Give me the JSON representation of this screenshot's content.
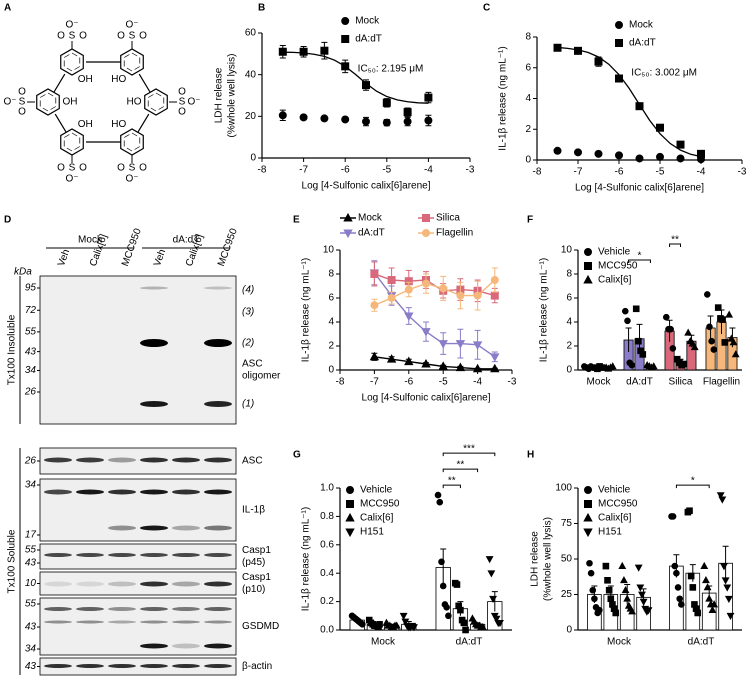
{
  "panel_a": {
    "label": "A",
    "sulfur": "S",
    "oxygen": "O",
    "anion": "O⁻",
    "hydroxyl": "OH",
    "hydroxyl_reversed": "HO"
  },
  "panel_d": {
    "label": "D",
    "kda": "kDa",
    "groups": [
      "Mock",
      "dA:dT"
    ],
    "lanes": [
      "Veh",
      "Calix[6]",
      "MCC950",
      "Veh",
      "Calix[6]",
      "MCC950"
    ],
    "fractions": [
      "Tx100 Insoluble",
      "Tx100 Soluble"
    ],
    "oligomer_bands": [
      "(4)",
      "(3)",
      "(2)",
      "(1)"
    ],
    "blots": [
      {
        "name": [
          "ASC",
          "oligomer"
        ],
        "markers": [
          95,
          72,
          55,
          43,
          34,
          26
        ]
      },
      {
        "name": [
          "ASC"
        ],
        "markers": [
          26
        ]
      },
      {
        "name": [
          "IL-1β"
        ],
        "markers": [
          34,
          17
        ]
      },
      {
        "name": [
          "Casp1",
          "(p45)"
        ],
        "markers": [
          55,
          43
        ]
      },
      {
        "name": [
          "Casp1",
          "(p10)"
        ],
        "markers": [
          10
        ]
      },
      {
        "name": [
          "GSDMD"
        ],
        "markers": [
          55,
          43,
          34
        ]
      },
      {
        "name": [
          "β-actin"
        ],
        "markers": [
          43
        ]
      }
    ]
  },
  "chart_data": [
    {
      "type": "line",
      "panel": "B",
      "ylabel": [
        "LDH release",
        "(%whole well lysis)"
      ],
      "xlabel": "Log [4-Sulfonic calix[6]arene]",
      "annotation": "IC₅₀: 2.195 μM",
      "legend": "upper right",
      "xlim": [
        -8,
        -3
      ],
      "xticks": [
        -8,
        -7,
        -6,
        -5,
        -4,
        -3
      ],
      "ylim": [
        0,
        60
      ],
      "yticks": [
        0,
        20,
        40,
        60
      ],
      "x": [
        -7.5,
        -7,
        -6.5,
        -6,
        -5.5,
        -5,
        -4.5,
        -4
      ],
      "series": [
        {
          "name": "Mock",
          "marker": "circle",
          "color": "#000000",
          "values": [
            20.5,
            19.5,
            19,
            18.5,
            17.5,
            17,
            17.5,
            18
          ],
          "errors": [
            2.5,
            1,
            1,
            1,
            2,
            1.5,
            2,
            2.5
          ]
        },
        {
          "name": "dA:dT",
          "marker": "square",
          "color": "#000000",
          "values": [
            51,
            51,
            51.5,
            44,
            35,
            26.5,
            22,
            29
          ],
          "errors": [
            3,
            2.5,
            4,
            3,
            2.5,
            2,
            2,
            2.5
          ],
          "fit": {
            "x": [
              -7.5,
              -7.25,
              -7,
              -6.75,
              -6.5,
              -6.25,
              -6,
              -5.75,
              -5.5,
              -5.25,
              -5,
              -4.75,
              -4.5,
              -4.25,
              -4
            ],
            "values": [
              50.8,
              50.7,
              50.4,
              49.8,
              48.8,
              46.9,
              44.0,
              40.1,
              35.8,
              32.1,
              29.5,
              27.9,
              27.0,
              26.5,
              26.3
            ]
          }
        }
      ]
    },
    {
      "type": "line",
      "panel": "C",
      "ylabel": [
        "IL-1β release (ng mL⁻¹)"
      ],
      "xlabel": "Log [4-Sulfonic calix[6]arene]",
      "annotation": "IC₅₀: 3.002 μM",
      "legend": "upper right",
      "xlim": [
        -8,
        -3
      ],
      "xticks": [
        -8,
        -7,
        -6,
        -5,
        -4,
        -3
      ],
      "ylim": [
        0,
        8
      ],
      "yticks": [
        0,
        2,
        4,
        6,
        8
      ],
      "x": [
        -7.5,
        -7,
        -6.5,
        -6,
        -5.5,
        -5,
        -4.5,
        -4
      ],
      "series": [
        {
          "name": "Mock",
          "marker": "circle",
          "color": "#000000",
          "values": [
            0.6,
            0.5,
            0.4,
            0.3,
            0.1,
            0.2,
            0.1,
            0.05
          ],
          "errors": [
            0.05,
            0.05,
            0.05,
            0.05,
            0.05,
            0.05,
            0.05,
            0.05
          ]
        },
        {
          "name": "dA:dT",
          "marker": "square",
          "color": "#000000",
          "values": [
            7.3,
            7.1,
            6.4,
            5.3,
            3.5,
            2.1,
            1.0,
            0.4
          ],
          "errors": [
            0.2,
            0.2,
            0.3,
            0.2,
            0.2,
            0.2,
            0.1,
            0.1
          ],
          "fit": {
            "x": [
              -7.5,
              -7.25,
              -7,
              -6.75,
              -6.5,
              -6.25,
              -6,
              -5.75,
              -5.5,
              -5.25,
              -5,
              -4.75,
              -4.5,
              -4.25,
              -4
            ],
            "values": [
              7.32,
              7.26,
              7.16,
              6.99,
              6.7,
              6.23,
              5.55,
              4.65,
              3.6,
              2.57,
              1.71,
              1.07,
              0.64,
              0.37,
              0.22
            ]
          }
        }
      ]
    },
    {
      "type": "line",
      "panel": "E",
      "ylabel": [
        "IL-1β release (ng mL⁻¹)"
      ],
      "xlabel": "Log [4-Sulfonic calix[6]arene]",
      "legend": "top",
      "lines": true,
      "xlim": [
        -8,
        -3
      ],
      "xticks": [
        -8,
        -7,
        -6,
        -5,
        -4,
        -3
      ],
      "ylim": [
        0,
        10
      ],
      "yticks": [
        0,
        2,
        4,
        6,
        8,
        10
      ],
      "x": [
        -7,
        -6.5,
        -6,
        -5.5,
        -5,
        -4.5,
        -4,
        -3.5
      ],
      "series": [
        {
          "name": "Mock",
          "marker": "triangle",
          "color": "#000000",
          "values": [
            1.1,
            0.9,
            0.7,
            0.5,
            0.3,
            0.2,
            0.1,
            0.1
          ],
          "errors": [
            0.3,
            0.2,
            0.2,
            0.1,
            0.1,
            0.1,
            0.05,
            0.05
          ]
        },
        {
          "name": "dA:dT",
          "marker": "triangle-down",
          "color": "#8a7cc8",
          "values": [
            8.1,
            6.2,
            4.5,
            3.2,
            2.2,
            2.2,
            2.1,
            1.1
          ],
          "errors": [
            1,
            0.8,
            0.7,
            0.8,
            0.9,
            1.2,
            1.2,
            0.4
          ]
        },
        {
          "name": "Silica",
          "marker": "square",
          "color": "#d9697a",
          "values": [
            8.0,
            7.5,
            7.4,
            7.5,
            6.6,
            6.7,
            6.6,
            6.2
          ],
          "errors": [
            1,
            1,
            0.9,
            0.7,
            0.6,
            0.9,
            0.9,
            0.6
          ]
        },
        {
          "name": "Flagellin",
          "marker": "circle",
          "color": "#f5b87a",
          "values": [
            5.4,
            6.0,
            6.7,
            7.2,
            6.8,
            6.2,
            6.2,
            7.5
          ],
          "errors": [
            0.5,
            0.5,
            0.6,
            0.8,
            1,
            1.1,
            1.2,
            1
          ]
        }
      ]
    },
    {
      "type": "bar",
      "panel": "F",
      "ylabel": [
        "IL-1β release (ng mL⁻¹)"
      ],
      "legend": "upper left",
      "categories": [
        "Mock",
        "dA:dT",
        "Silica",
        "Flagellin"
      ],
      "category_colors": [
        "#bfbfbf",
        "#8a7cc8",
        "#d9697a",
        "#f5b87a"
      ],
      "ylim": [
        0,
        10
      ],
      "yticks": [
        0,
        2,
        4,
        6,
        8,
        10
      ],
      "series": [
        {
          "name": "Vehicle",
          "marker": "circle",
          "color": "#000000",
          "values": [
            0.25,
            2.5,
            3.25,
            3.5
          ],
          "errors": [
            0.1,
            1.0,
            0.9,
            1.0
          ],
          "points": [
            [
              0.3,
              0.2,
              0.1,
              0.3
            ],
            [
              4.9,
              4.1,
              0.6,
              0.4
            ],
            [
              4.4,
              3.4,
              3.4,
              1.8
            ],
            [
              6.3,
              3.6,
              2.4,
              1.7
            ]
          ]
        },
        {
          "name": "MCC950",
          "marker": "square",
          "color": "#000000",
          "values": [
            0.2,
            2.6,
            0.6,
            4.0
          ],
          "errors": [
            0.1,
            1.2,
            0.3,
            1.0
          ],
          "points": [
            [
              0.2,
              0.1,
              0.3,
              0.2
            ],
            [
              5.1,
              2.4,
              1.6,
              1.3
            ],
            [
              0.9,
              0.6,
              0.4,
              0.5
            ],
            [
              5.2,
              4.3,
              4.2,
              2.3
            ]
          ]
        },
        {
          "name": "Calix[6]",
          "marker": "triangle",
          "color": "#000000",
          "values": [
            0.2,
            0.3,
            2.4,
            2.7
          ],
          "errors": [
            0.1,
            0.1,
            0.5,
            0.8
          ],
          "points": [
            [
              0.2,
              0.1,
              0.2,
              0.3
            ],
            [
              0.4,
              0.3,
              0.2,
              0.3
            ],
            [
              3.1,
              2.4,
              2.2,
              1.9
            ],
            [
              4.6,
              2.6,
              2.3,
              1.3
            ]
          ]
        }
      ],
      "significance": [
        {
          "label": "*",
          "category": 1,
          "from": 0,
          "to": 2
        },
        {
          "label": "**",
          "category": 2,
          "from": 0,
          "to": 1
        }
      ]
    },
    {
      "type": "bar",
      "panel": "G",
      "ylabel": [
        "IL-1β release (ng mL⁻¹)"
      ],
      "legend": "upper left",
      "categories": [
        "Mock",
        "dA:dT"
      ],
      "bar_color": "#ffffff",
      "ylim": [
        0,
        1
      ],
      "yticks": [
        {
          "value": 0,
          "label": "0.0"
        },
        0.2,
        0.4,
        0.6,
        0.8,
        {
          "value": 1,
          "label": "1.0"
        }
      ],
      "series": [
        {
          "name": "Vehicle",
          "marker": "circle",
          "color": "#000000",
          "values": [
            0.07,
            0.44
          ],
          "errors": [
            0.01,
            0.13
          ],
          "points": [
            [
              0.1,
              0.09,
              0.08,
              0.07,
              0.06,
              0.05,
              0.04
            ],
            [
              0.95,
              0.9,
              0.48,
              0.31,
              0.18,
              0.16,
              0.1
            ]
          ]
        },
        {
          "name": "MCC950",
          "marker": "square",
          "color": "#000000",
          "values": [
            0.04,
            0.15
          ],
          "errors": [
            0.01,
            0.05
          ],
          "points": [
            [
              0.07,
              0.05,
              0.04,
              0.03,
              0.03,
              0.02,
              0.04
            ],
            [
              0.33,
              0.32,
              0.17,
              0.14,
              0.07,
              0.05,
              0.0
            ]
          ]
        },
        {
          "name": "Calix[6]",
          "marker": "triangle",
          "color": "#000000",
          "values": [
            0.03,
            0.04
          ],
          "errors": [
            0.01,
            0.01
          ],
          "points": [
            [
              0.05,
              0.03,
              0.03,
              0.02,
              0.02,
              0.03,
              0.03
            ],
            [
              0.08,
              0.06,
              0.04,
              0.03,
              0.03,
              0.02,
              0.02
            ]
          ]
        },
        {
          "name": "H151",
          "marker": "triangle-down",
          "color": "#000000",
          "values": [
            0.04,
            0.2
          ],
          "errors": [
            0.02,
            0.07
          ],
          "points": [
            [
              0.1,
              0.06,
              0.03,
              0.02,
              0.02,
              0.03,
              0.02
            ],
            [
              0.5,
              0.4,
              0.22,
              0.1,
              0.08,
              0.05,
              0.05
            ]
          ]
        }
      ],
      "significance": [
        {
          "label": "**",
          "category": 1,
          "from": 0,
          "to": 1
        },
        {
          "label": "**",
          "category": 1,
          "from": 0,
          "to": 2
        },
        {
          "label": "***",
          "category": 1,
          "from": 0,
          "to": 3
        }
      ]
    },
    {
      "type": "bar",
      "panel": "H",
      "ylabel": [
        "LDH release",
        "(%whole well lysis)"
      ],
      "legend": "upper left",
      "categories": [
        "Mock",
        "dA:dT"
      ],
      "bar_color": "#ffffff",
      "ylim": [
        0,
        100
      ],
      "yticks": [
        0,
        25,
        50,
        75,
        100
      ],
      "series": [
        {
          "name": "Vehicle",
          "marker": "circle",
          "color": "#000000",
          "values": [
            25,
            45
          ],
          "errors": [
            6,
            8
          ],
          "points": [
            [
              47,
              40,
              28,
              22,
              16,
              12,
              14
            ],
            [
              80,
              80,
              45,
              40,
              30,
              22,
              18
            ]
          ]
        },
        {
          "name": "MCC950",
          "marker": "square",
          "color": "#000000",
          "values": [
            25,
            40
          ],
          "errors": [
            6,
            6
          ],
          "points": [
            [
              45,
              35,
              28,
              22,
              18,
              15,
              12
            ],
            [
              83,
              84,
              38,
              30,
              18,
              15,
              12
            ]
          ]
        },
        {
          "name": "Calix[6]",
          "marker": "triangle",
          "color": "#000000",
          "values": [
            25,
            26
          ],
          "errors": [
            7,
            5
          ],
          "points": [
            [
              45,
              35,
              28,
              22,
              17,
              15,
              13
            ],
            [
              45,
              35,
              30,
              22,
              18,
              14,
              18
            ]
          ]
        },
        {
          "name": "H151",
          "marker": "triangle-down",
          "color": "#000000",
          "values": [
            23,
            47
          ],
          "errors": [
            6,
            12
          ],
          "points": [
            [
              44,
              30,
              25,
              20,
              15,
              13,
              14
            ],
            [
              95,
              92,
              45,
              35,
              30,
              22,
              10
            ]
          ]
        }
      ],
      "significance": [
        {
          "label": "*",
          "category": 1,
          "from": 0,
          "to": 2
        }
      ]
    }
  ]
}
